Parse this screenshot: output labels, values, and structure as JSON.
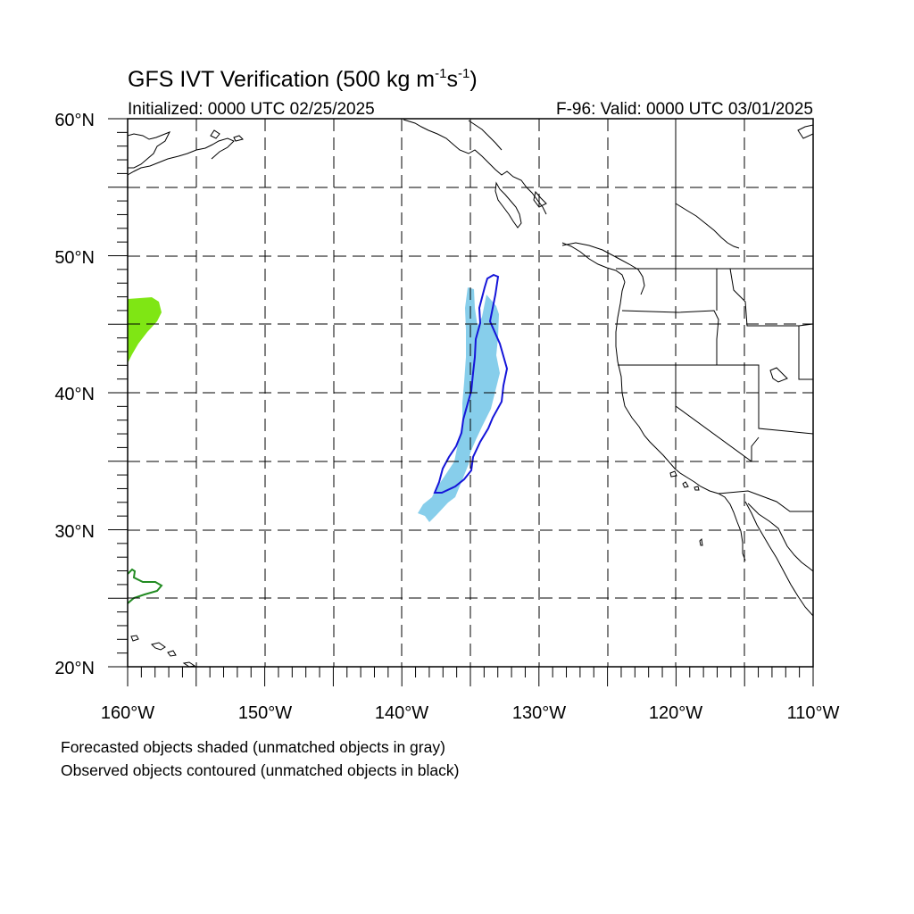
{
  "figure": {
    "title": "GFS IVT Verification (500 kg m",
    "title_sup1": "-1",
    "title_mid": "s",
    "title_sup2": "-1",
    "title_end": ")",
    "initialized": "Initialized: 0000 UTC 02/25/2025",
    "valid": "F-96: Valid: 0000 UTC 03/01/2025"
  },
  "axes": {
    "lat_labels": [
      "60°N",
      "50°N",
      "40°N",
      "30°N",
      "20°N"
    ],
    "lon_labels": [
      "160°W",
      "150°W",
      "140°W",
      "130°W",
      "120°W",
      "110°W"
    ],
    "lat_range": [
      20,
      60
    ],
    "lon_range": [
      -160,
      -110
    ],
    "grid": "dashed every 5 degrees"
  },
  "legend": {
    "line1": "Forecasted objects shaded (unmatched objects in gray)",
    "line2": "Observed objects contoured (unmatched objects in black)"
  },
  "objects": [
    {
      "kind": "forecast-shaded",
      "color": "#87ceeb",
      "lat_range": [
        31.3,
        47.6
      ],
      "lon_range": [
        -138.1,
        -132.5
      ]
    },
    {
      "kind": "observed-contour",
      "color": "#1515d9",
      "lat_range": [
        32.6,
        48.6
      ],
      "lon_range": [
        -137.2,
        -131.9
      ]
    },
    {
      "kind": "forecast-shaded",
      "color": "#7fe614",
      "lat_range": [
        42.3,
        46.9
      ],
      "lon_range": [
        -160,
        -157.6
      ]
    },
    {
      "kind": "observed-contour",
      "color": "#228b22",
      "lat_range": [
        24.8,
        27.2
      ],
      "lon_range": [
        -160,
        -157.5
      ]
    }
  ]
}
